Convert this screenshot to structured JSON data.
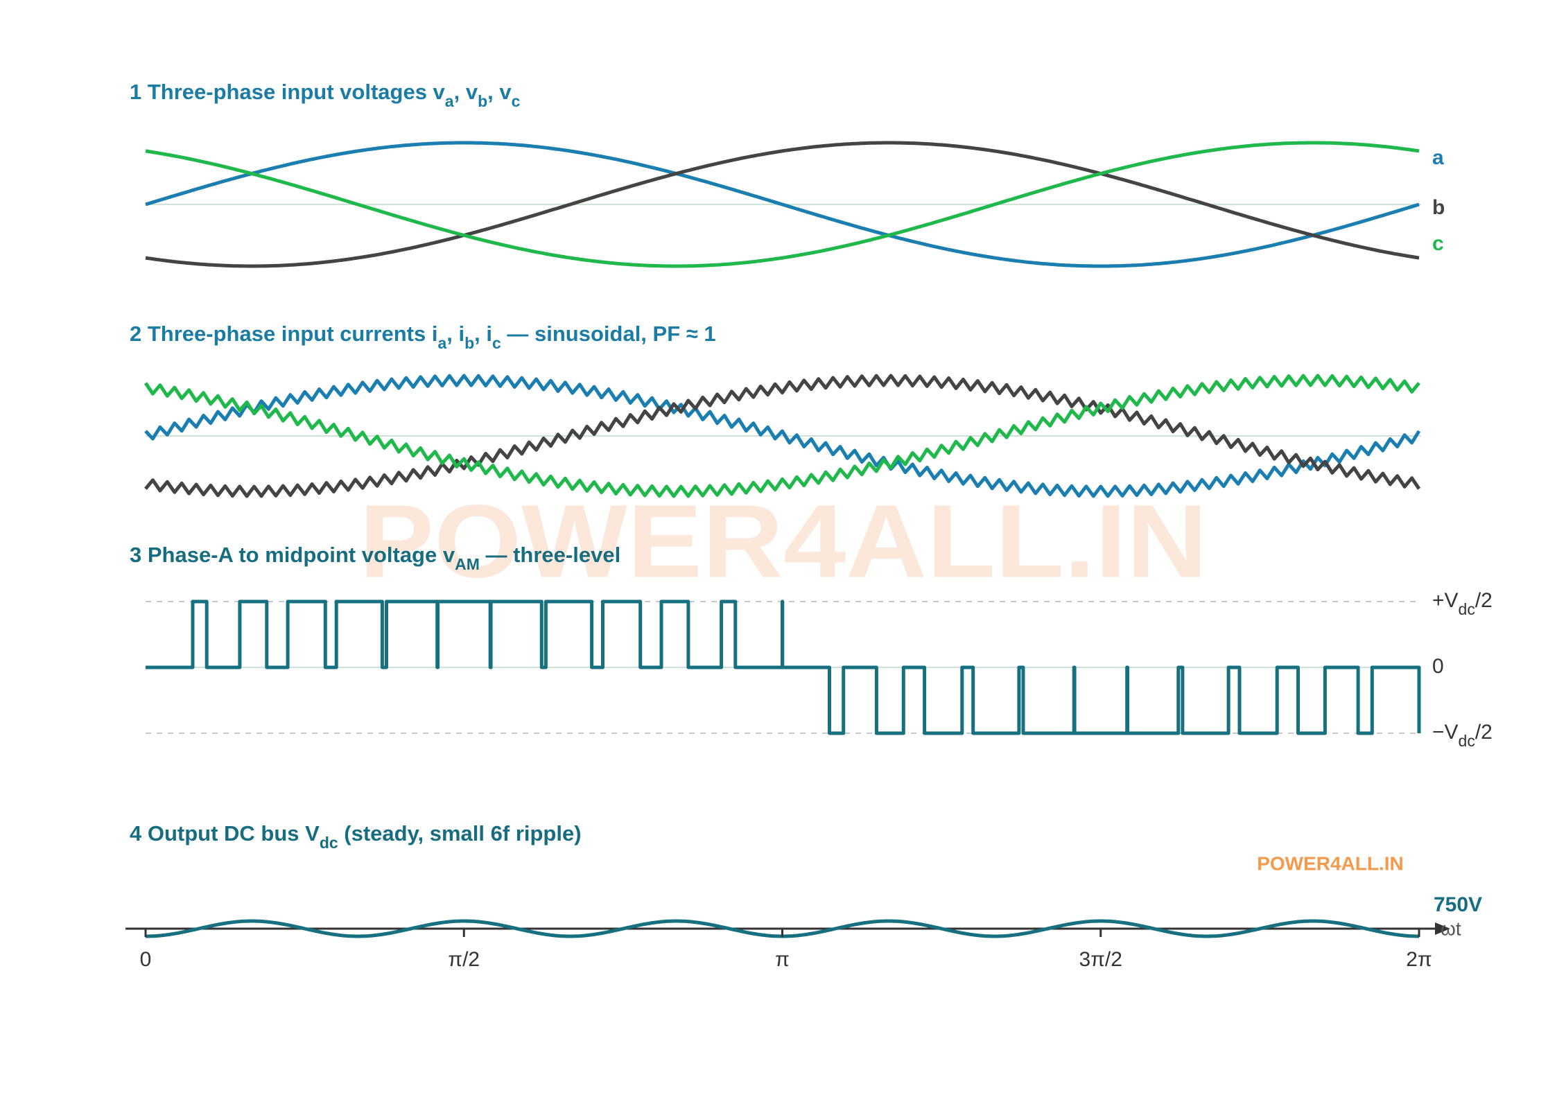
{
  "panels": [
    {
      "title": [
        "1  Three-phase input voltages  v",
        "a",
        ", v",
        "b",
        ", v",
        "c"
      ],
      "labels": [
        "a",
        "b",
        "c"
      ]
    },
    {
      "title": [
        "2  Three-phase input currents  i",
        "a",
        ", i",
        "b",
        ", i",
        "c",
        " — sinusoidal, PF ≈ 1"
      ]
    },
    {
      "title": [
        "3  Phase-A to midpoint voltage  v",
        "AM",
        " — three-level"
      ],
      "levels": [
        [
          "+V",
          "dc",
          "/2"
        ],
        [
          "0"
        ],
        [
          "−V",
          "dc",
          "/2"
        ]
      ]
    },
    {
      "title": [
        "4  Output DC bus  V",
        "dc",
        " (steady, small 6f ripple)"
      ],
      "value_label": "750V",
      "axis_label": "ωt"
    }
  ],
  "x_axis_labels": [
    "0",
    "π/2",
    "π",
    "3π/2",
    "2π"
  ],
  "watermark": "POWER4ALL.IN",
  "logo": "POWER4ALL.IN"
}
